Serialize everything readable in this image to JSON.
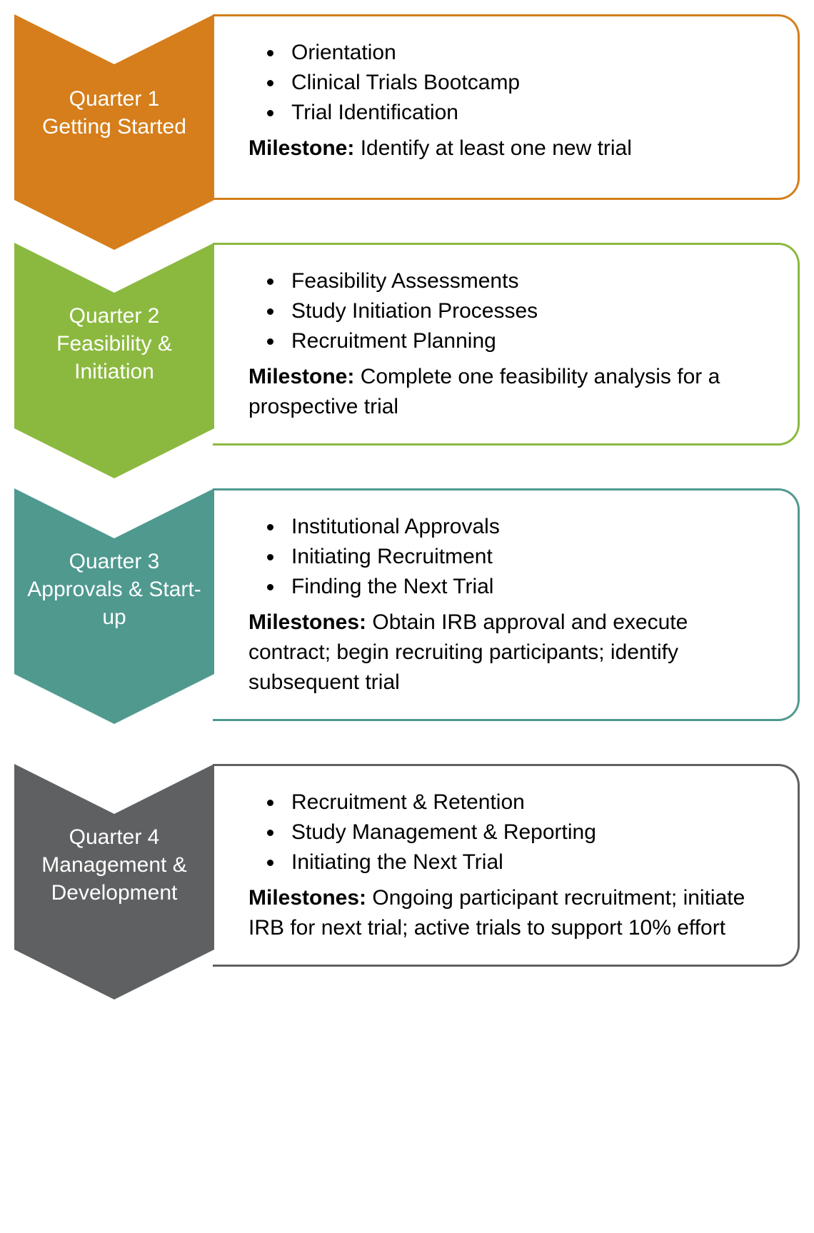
{
  "diagram": {
    "type": "flowchart",
    "background_color": "#ffffff",
    "text_color": "#000000",
    "chevron_text_color": "#ffffff",
    "font_family": "Arial",
    "label_fontsize": 30,
    "content_fontsize": 30,
    "chevron_width": 280,
    "chevron_height": 260,
    "box_border_radius": 30,
    "row_gap": 60,
    "quarters": [
      {
        "id": "q1",
        "color": "#d57e1b",
        "title_line1": "Quarter 1",
        "title_line2": "Getting Started",
        "bullets": [
          "Orientation",
          "Clinical Trials Bootcamp",
          "Trial Identification"
        ],
        "milestone_label": "Milestone:",
        "milestone_text": " Identify at least one new trial"
      },
      {
        "id": "q2",
        "color": "#8bb93f",
        "title_line1": "Quarter 2",
        "title_line2": "Feasibility & Initiation",
        "bullets": [
          "Feasibility Assessments",
          "Study Initiation Processes",
          "Recruitment Planning"
        ],
        "milestone_label": "Milestone:",
        "milestone_text": " Complete one feasibility analysis for a prospective trial"
      },
      {
        "id": "q3",
        "color": "#4f998f",
        "title_line1": "Quarter 3",
        "title_line2": "Approvals & Start-up",
        "bullets": [
          "Institutional Approvals",
          "Initiating Recruitment",
          "Finding the Next Trial"
        ],
        "milestone_label": "Milestones:",
        "milestone_text": " Obtain IRB approval and execute contract; begin recruiting participants; identify subsequent trial"
      },
      {
        "id": "q4",
        "color": "#5f6062",
        "title_line1": "Quarter 4",
        "title_line2": "Management & Development",
        "bullets": [
          "Recruitment & Retention",
          "Study Management & Reporting",
          "Initiating the Next Trial"
        ],
        "milestone_label": "Milestones:",
        "milestone_text": " Ongoing participant recruitment; initiate IRB for next trial; active trials to support 10% effort"
      }
    ]
  }
}
